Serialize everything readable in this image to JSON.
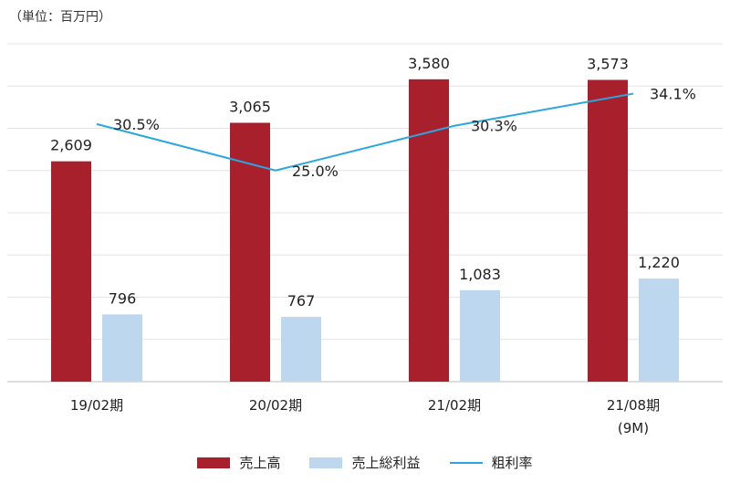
{
  "unit_label": "（単位：百万円）",
  "chart_data": {
    "type": "bar",
    "categories": [
      "19/02期",
      "20/02期",
      "21/02期",
      "21/08期"
    ],
    "category_sublabels": [
      "",
      "",
      "",
      "(9M)"
    ],
    "ylim": [
      0,
      4000
    ],
    "grid": true,
    "legend_placement": "bottom",
    "series": [
      {
        "name": "売上高",
        "type": "bar",
        "color": "#a8202b",
        "values": [
          2609,
          3065,
          3580,
          3573
        ],
        "labels": [
          "2,609",
          "3,065",
          "3,580",
          "3,573"
        ]
      },
      {
        "name": "売上総利益",
        "type": "bar",
        "color": "#bcd7ee",
        "values": [
          796,
          767,
          1083,
          1220
        ],
        "labels": [
          "796",
          "767",
          "1,083",
          "1,220"
        ]
      },
      {
        "name": "粗利率",
        "type": "line",
        "color": "#2aa6e0",
        "values": [
          30.5,
          25.0,
          30.3,
          34.1
        ],
        "labels": [
          "30.5%",
          "25.0%",
          "30.3%",
          "34.1%"
        ]
      }
    ]
  }
}
